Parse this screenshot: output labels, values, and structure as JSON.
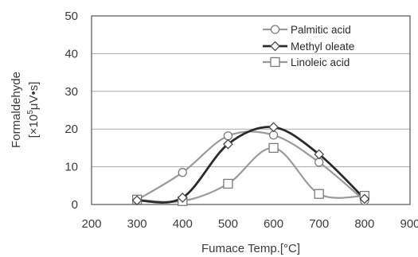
{
  "chart_data": {
    "type": "line",
    "title": "",
    "xlabel": "Fumace Temp.[°C]",
    "ylabel_line1": "Formaldehyde",
    "ylabel_line2_prefix": "[×10",
    "ylabel_line2_exp": "5",
    "ylabel_line2_suffix": "μV•s]",
    "xlim": [
      200,
      900
    ],
    "ylim": [
      0,
      50
    ],
    "xticks": [
      "200",
      "300",
      "400",
      "500",
      "600",
      "700",
      "800",
      "900"
    ],
    "yticks": [
      "0",
      "10",
      "20",
      "30",
      "40",
      "50"
    ],
    "grid": "horizontal",
    "legend_position": "top-right",
    "series": [
      {
        "name": "Palmitic acid",
        "color": "#9a9a9a",
        "marker": "circle",
        "x": [
          300,
          400,
          500,
          600,
          700,
          800
        ],
        "y": [
          1.2,
          8.5,
          18.2,
          18.4,
          11.2,
          1.0
        ]
      },
      {
        "name": "Methyl oleate",
        "color": "#2b2b2b",
        "marker": "diamond",
        "x": [
          300,
          400,
          500,
          600,
          700,
          800
        ],
        "y": [
          1.1,
          1.8,
          16.0,
          20.5,
          13.3,
          1.5
        ]
      },
      {
        "name": "Linoleic acid",
        "color": "#9a9a9a",
        "marker": "square",
        "x": [
          300,
          400,
          500,
          600,
          700,
          800
        ],
        "y": [
          1.3,
          0.9,
          5.5,
          15.0,
          2.8,
          2.3
        ]
      }
    ]
  }
}
